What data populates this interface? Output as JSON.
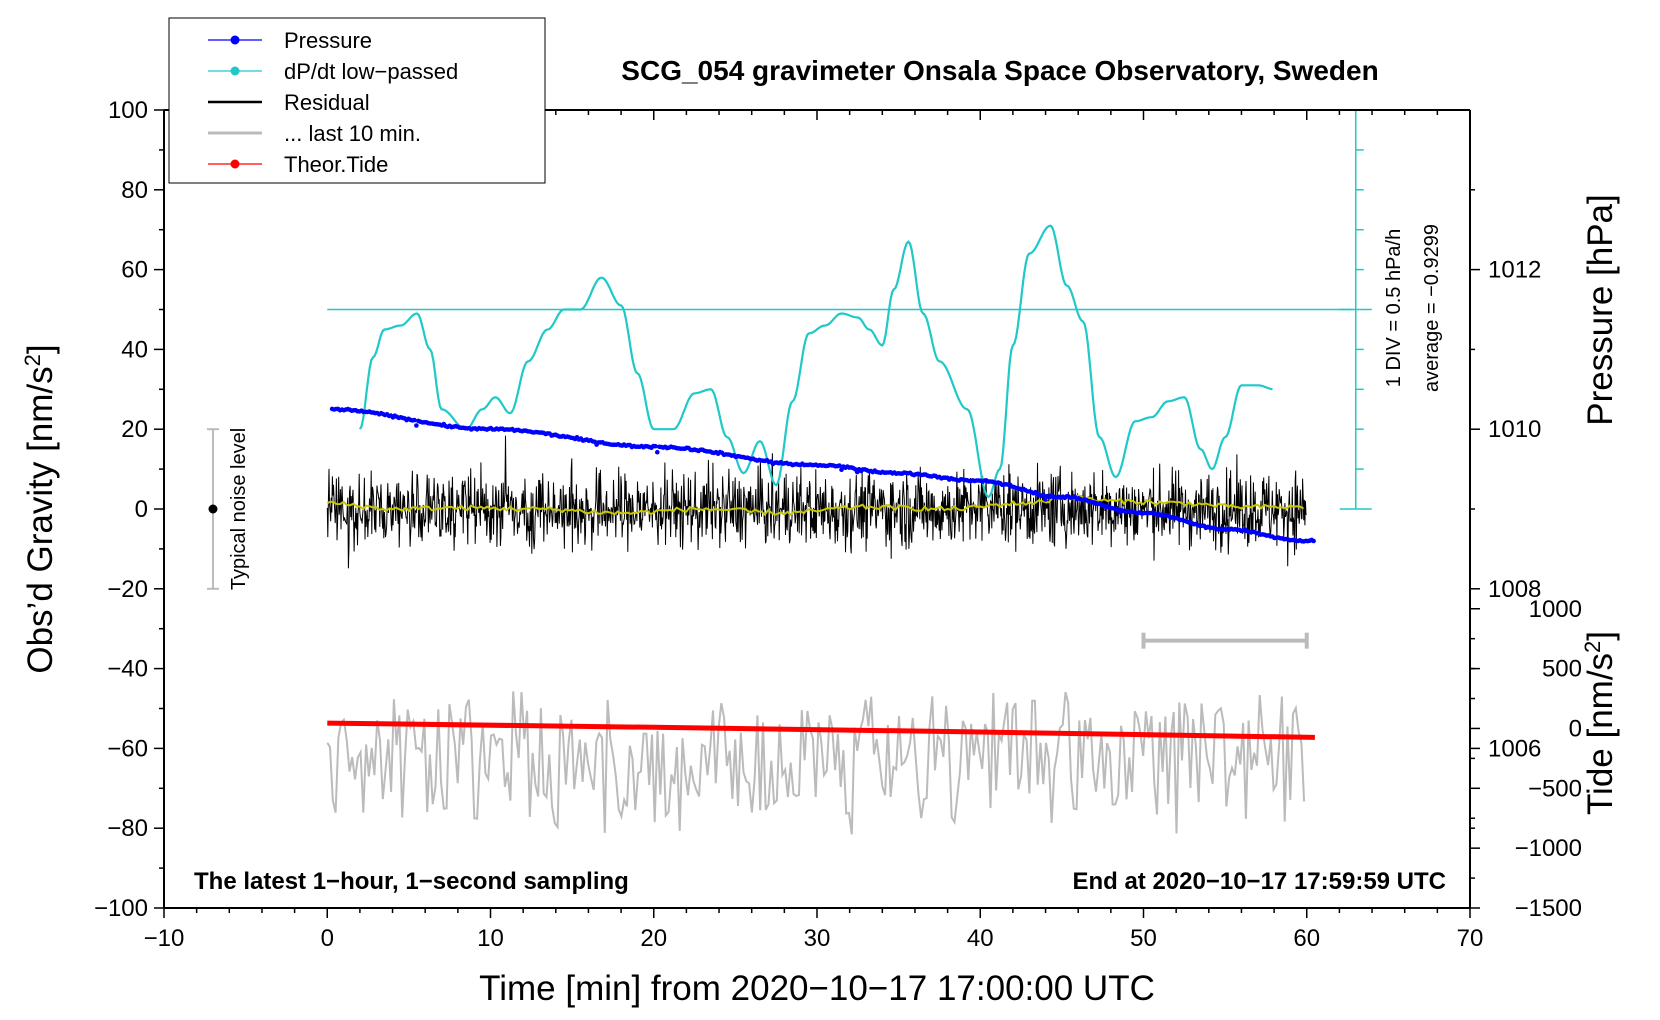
{
  "chart_data": {
    "type": "line",
    "title": "SCG_054 gravimeter Onsala Space Observatory, Sweden",
    "xlabel": "Time [min] from 2020−10−17 17:00:00 UTC",
    "ylabel_left": "Obs’d Gravity [nm/s²]",
    "ylabel_pressure": "Pressure [hPa]",
    "ylabel_tide": "Tide [nm/s²]",
    "xlim": [
      -10,
      70
    ],
    "ylim": [
      -100,
      100
    ],
    "pressure_axis": {
      "range_hpa": [
        1004,
        1014
      ],
      "ticks": [
        "1006",
        "1008",
        "1010",
        "1012"
      ]
    },
    "tide_axis": {
      "range": [
        -1500,
        1000
      ],
      "ticks": [
        "−1500",
        "−1000",
        "−500",
        "0",
        "500",
        "1000"
      ]
    },
    "x_ticks": [
      "−10",
      "0",
      "10",
      "20",
      "30",
      "40",
      "50",
      "60",
      "70"
    ],
    "y_ticks": [
      "−100",
      "−80",
      "−60",
      "−40",
      "−20",
      "0",
      "20",
      "40",
      "60",
      "80",
      "100"
    ],
    "legend": [
      {
        "label": "Pressure",
        "color": "#0000ff",
        "marker": true
      },
      {
        "label": "dP/dt low−passed",
        "color": "#20c8c8",
        "marker": true
      },
      {
        "label": "Residual",
        "color": "#000000",
        "marker": false
      },
      {
        "label": "... last 10 min.",
        "color": "#bbbbbb",
        "marker": false
      },
      {
        "label": "Theor.Tide",
        "color": "#ff0000",
        "marker": true
      }
    ],
    "legend_position": "top-left",
    "dpdt_scale_label": "1 DIV = 0.5 hPa/h",
    "dpdt_average_label": "average = −0.9299",
    "noise_label": "Typical noise level",
    "noise_bar": {
      "x": -7,
      "center": 0,
      "half_range": 20
    },
    "note_left": "The latest 1−hour, 1−second sampling",
    "note_right": "End at 2020−10−17 17:59:59 UTC",
    "last10_bar": {
      "x_start": 50,
      "x_end": 60,
      "y": -33
    },
    "series": [
      {
        "name": "Pressure",
        "axis": "pressure_hpa",
        "x": [
          0,
          10,
          20,
          30,
          35,
          40,
          45,
          50,
          55,
          60
        ],
        "values": [
          1010.25,
          1010.0,
          1009.78,
          1009.55,
          1009.45,
          1009.35,
          1009.15,
          1008.95,
          1008.75,
          1008.6
        ]
      },
      {
        "name": "dP/dt low−passed",
        "axis": "gravity_display",
        "x": [
          2,
          2.8,
          3.5,
          4.5,
          5.5,
          6.3,
          7,
          8.5,
          9.5,
          10.3,
          11.2,
          12.3,
          13.5,
          14.5,
          15.5,
          16.8,
          18,
          19,
          20,
          21.2,
          22.5,
          23.5,
          24.5,
          25.5,
          26.5,
          27.5,
          28.5,
          29.5,
          30.5,
          31.5,
          32.5,
          33.2,
          34,
          34.7,
          35.6,
          36.5,
          37.5,
          39.2,
          40.5,
          41.2,
          42,
          43,
          44.3,
          45.3,
          46.3,
          47.3,
          48.3,
          49.5,
          50.5,
          51.5,
          52.5,
          53.5,
          54.2,
          55,
          56,
          57,
          58
        ],
        "values": [
          20,
          38,
          45,
          46,
          49,
          40,
          25,
          20,
          25,
          28,
          24,
          37,
          45,
          50,
          50,
          58,
          51,
          34,
          20,
          20,
          29,
          30,
          18,
          9,
          17,
          6,
          27,
          44,
          46,
          49,
          48,
          45,
          41,
          55,
          67,
          49,
          37,
          25,
          3,
          10,
          41,
          64,
          71,
          56,
          47,
          18,
          8,
          22,
          23,
          27,
          28,
          15,
          10,
          18,
          31,
          31,
          30
        ]
      },
      {
        "name": "Residual",
        "axis": "gravity",
        "x_range": [
          0,
          60
        ],
        "amplitude": 10.5
      },
      {
        "name": "Residual smoothed",
        "axis": "gravity",
        "x": [
          0,
          4,
          8,
          13,
          18,
          23,
          28,
          33,
          38,
          43,
          45.5,
          48,
          52,
          56,
          60
        ],
        "values": [
          1.5,
          0,
          0.3,
          0,
          -1,
          0,
          -1,
          0.5,
          0,
          1.5,
          3,
          2,
          1.5,
          0.5,
          0.5
        ]
      },
      {
        "name": "... last 10 min.",
        "axis": "gravity_display",
        "x_range": [
          0,
          60
        ],
        "center": -63,
        "amplitude": 22
      },
      {
        "name": "Theor.Tide",
        "axis": "tide",
        "x": [
          0,
          20,
          40,
          60.5
        ],
        "values": [
          45,
          10,
          -30,
          -75
        ]
      }
    ]
  }
}
